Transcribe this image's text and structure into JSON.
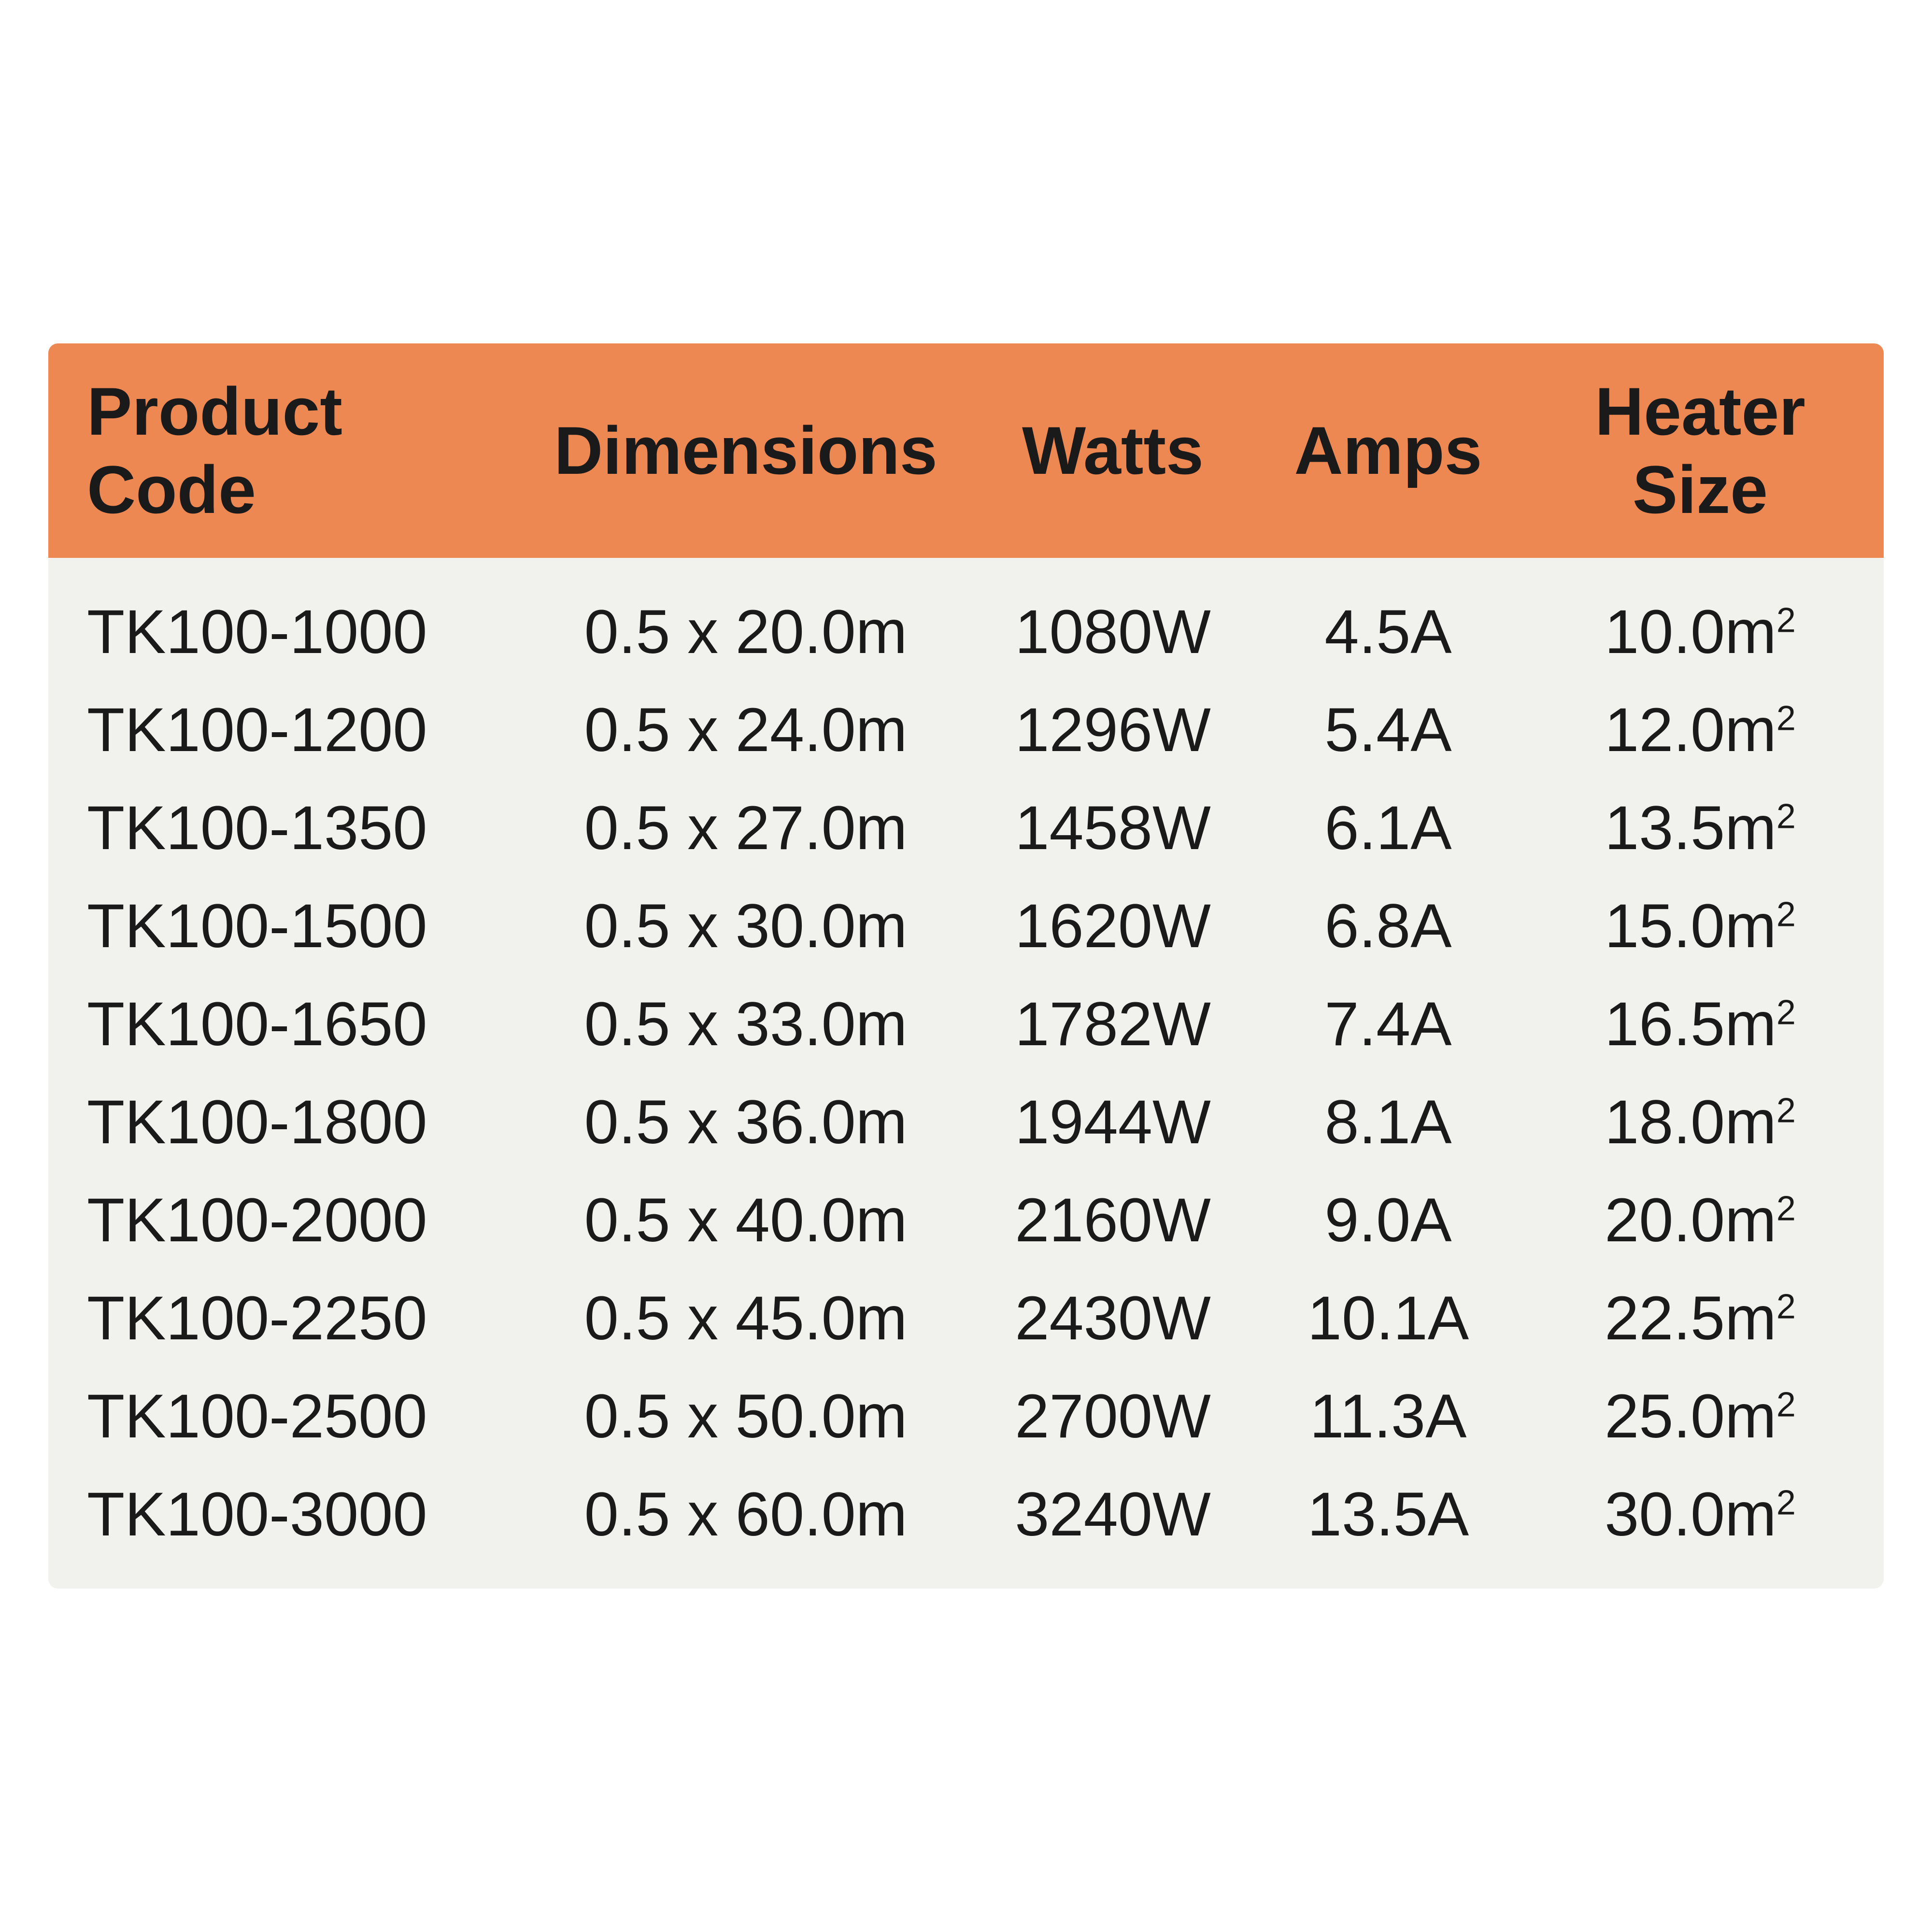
{
  "table": {
    "type": "table",
    "header_bg": "#ed8853",
    "body_bg": "#f1f1ee",
    "text_color": "#1a1a1a",
    "header_fontsize": 140,
    "body_fontsize": 128,
    "columns": [
      {
        "label": "Product Code",
        "align": "left",
        "width_pct": 26
      },
      {
        "label": "Dimensions",
        "align": "center",
        "width_pct": 24
      },
      {
        "label": "Watts",
        "align": "center",
        "width_pct": 16
      },
      {
        "label": "Amps",
        "align": "center",
        "width_pct": 14
      },
      {
        "label": "Heater Size",
        "align": "center",
        "width_pct": 20
      }
    ],
    "rows": [
      {
        "code": "TK100-1000",
        "dimensions": "0.5 x 20.0m",
        "watts": "1080W",
        "amps": "4.5A",
        "heater_size_value": "10.0",
        "heater_size_unit": "m"
      },
      {
        "code": "TK100-1200",
        "dimensions": "0.5 x 24.0m",
        "watts": "1296W",
        "amps": "5.4A",
        "heater_size_value": "12.0",
        "heater_size_unit": "m"
      },
      {
        "code": "TK100-1350",
        "dimensions": "0.5 x 27.0m",
        "watts": "1458W",
        "amps": "6.1A",
        "heater_size_value": "13.5",
        "heater_size_unit": "m"
      },
      {
        "code": "TK100-1500",
        "dimensions": "0.5 x 30.0m",
        "watts": "1620W",
        "amps": "6.8A",
        "heater_size_value": "15.0",
        "heater_size_unit": "m"
      },
      {
        "code": "TK100-1650",
        "dimensions": "0.5 x 33.0m",
        "watts": "1782W",
        "amps": "7.4A",
        "heater_size_value": "16.5",
        "heater_size_unit": "m"
      },
      {
        "code": "TK100-1800",
        "dimensions": "0.5 x 36.0m",
        "watts": "1944W",
        "amps": "8.1A",
        "heater_size_value": "18.0",
        "heater_size_unit": "m"
      },
      {
        "code": "TK100-2000",
        "dimensions": "0.5 x 40.0m",
        "watts": "2160W",
        "amps": "9.0A",
        "heater_size_value": "20.0",
        "heater_size_unit": "m"
      },
      {
        "code": "TK100-2250",
        "dimensions": "0.5 x 45.0m",
        "watts": "2430W",
        "amps": "10.1A",
        "heater_size_value": "22.5",
        "heater_size_unit": "m"
      },
      {
        "code": "TK100-2500",
        "dimensions": "0.5 x 50.0m",
        "watts": "2700W",
        "amps": "11.3A",
        "heater_size_value": "25.0",
        "heater_size_unit": "m"
      },
      {
        "code": "TK100-3000",
        "dimensions": "0.5 x 60.0m",
        "watts": "3240W",
        "amps": "13.5A",
        "heater_size_value": "30.0",
        "heater_size_unit": "m"
      }
    ]
  }
}
